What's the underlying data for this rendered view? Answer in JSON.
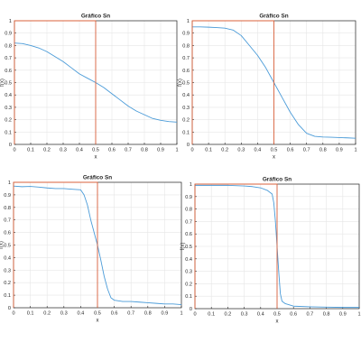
{
  "chart_data": [
    {
      "type": "line",
      "title": "Gráfico Sn",
      "xlabel": "x",
      "ylabel": "f(x)",
      "xlim": [
        0,
        1
      ],
      "ylim": [
        0,
        1
      ],
      "xticks": [
        "0",
        "0.1",
        "0.2",
        "0.3",
        "0.4",
        "0.5",
        "0.6",
        "0.7",
        "0.8",
        "0.9",
        "1"
      ],
      "yticks": [
        "0",
        "0.1",
        "0.2",
        "0.3",
        "0.4",
        "0.5",
        "0.6",
        "0.7",
        "0.8",
        "0.9",
        "1"
      ],
      "grid": true,
      "series": [
        {
          "color": "#4a9bd8",
          "x": [
            0,
            0.05,
            0.1,
            0.15,
            0.2,
            0.25,
            0.3,
            0.35,
            0.4,
            0.45,
            0.5,
            0.55,
            0.6,
            0.65,
            0.7,
            0.75,
            0.8,
            0.85,
            0.9,
            0.95,
            1
          ],
          "y": [
            0.82,
            0.815,
            0.8,
            0.78,
            0.75,
            0.71,
            0.67,
            0.62,
            0.57,
            0.535,
            0.5,
            0.46,
            0.41,
            0.36,
            0.31,
            0.27,
            0.24,
            0.21,
            0.195,
            0.185,
            0.18
          ]
        },
        {
          "color": "#d9603b",
          "x": [
            0,
            0,
            0.5,
            0.5
          ],
          "y": [
            0,
            1,
            1,
            0
          ]
        }
      ]
    },
    {
      "type": "line",
      "title": "Gráfico Sn",
      "xlabel": "x",
      "ylabel": "f(x)",
      "xlim": [
        0,
        1
      ],
      "ylim": [
        0,
        1
      ],
      "xticks": [
        "0",
        "0.1",
        "0.2",
        "0.3",
        "0.4",
        "0.5",
        "0.6",
        "0.7",
        "0.8",
        "0.9",
        "1"
      ],
      "yticks": [
        "0",
        "0.1",
        "0.2",
        "0.3",
        "0.4",
        "0.5",
        "0.6",
        "0.7",
        "0.8",
        "0.9",
        "1"
      ],
      "grid": true,
      "series": [
        {
          "color": "#4a9bd8",
          "x": [
            0,
            0.05,
            0.1,
            0.15,
            0.2,
            0.25,
            0.3,
            0.35,
            0.4,
            0.45,
            0.5,
            0.55,
            0.6,
            0.65,
            0.7,
            0.75,
            0.8,
            0.85,
            0.9,
            0.95,
            1
          ],
          "y": [
            0.95,
            0.95,
            0.948,
            0.945,
            0.94,
            0.925,
            0.88,
            0.8,
            0.72,
            0.62,
            0.5,
            0.38,
            0.26,
            0.16,
            0.09,
            0.065,
            0.06,
            0.058,
            0.055,
            0.053,
            0.05
          ]
        },
        {
          "color": "#d9603b",
          "x": [
            0,
            0,
            0.5,
            0.5
          ],
          "y": [
            0,
            1,
            1,
            0
          ]
        }
      ]
    },
    {
      "type": "line",
      "title": "Gráfico Sn",
      "xlabel": "x",
      "ylabel": "f(x)",
      "xlim": [
        0,
        1
      ],
      "ylim": [
        0,
        1
      ],
      "xticks": [
        "0",
        "0.1",
        "0.2",
        "0.3",
        "0.4",
        "0.5",
        "0.6",
        "0.7",
        "0.8",
        "0.9",
        "1"
      ],
      "yticks": [
        "0",
        "0.1",
        "0.2",
        "0.3",
        "0.4",
        "0.5",
        "0.6",
        "0.7",
        "0.8",
        "0.9",
        "1"
      ],
      "grid": true,
      "series": [
        {
          "color": "#4a9bd8",
          "x": [
            0,
            0.05,
            0.1,
            0.15,
            0.2,
            0.25,
            0.3,
            0.35,
            0.4,
            0.42,
            0.44,
            0.46,
            0.48,
            0.5,
            0.52,
            0.54,
            0.56,
            0.58,
            0.6,
            0.65,
            0.7,
            0.75,
            0.8,
            0.85,
            0.9,
            0.95,
            1
          ],
          "y": [
            0.97,
            0.965,
            0.967,
            0.962,
            0.955,
            0.95,
            0.95,
            0.945,
            0.94,
            0.9,
            0.82,
            0.7,
            0.6,
            0.5,
            0.38,
            0.25,
            0.15,
            0.08,
            0.06,
            0.05,
            0.05,
            0.045,
            0.04,
            0.035,
            0.03,
            0.03,
            0.025
          ]
        },
        {
          "color": "#d9603b",
          "x": [
            0,
            0,
            0.5,
            0.5
          ],
          "y": [
            0,
            1,
            1,
            0
          ]
        }
      ]
    },
    {
      "type": "line",
      "title": "Gráfico Sn",
      "xlabel": "x",
      "ylabel": "f(x)",
      "xlim": [
        0,
        1
      ],
      "ylim": [
        0,
        1
      ],
      "xticks": [
        "0",
        "0.1",
        "0.2",
        "0.3",
        "0.4",
        "0.5",
        "0.6",
        "0.7",
        "0.8",
        "0.9",
        "1"
      ],
      "yticks": [
        "0",
        "0.1",
        "0.2",
        "0.3",
        "0.4",
        "0.5",
        "0.6",
        "0.7",
        "0.8",
        "0.9",
        "1"
      ],
      "grid": true,
      "series": [
        {
          "color": "#4a9bd8",
          "x": [
            0,
            0.1,
            0.2,
            0.3,
            0.35,
            0.4,
            0.44,
            0.47,
            0.48,
            0.49,
            0.5,
            0.51,
            0.52,
            0.53,
            0.55,
            0.6,
            0.7,
            0.8,
            0.9,
            1
          ],
          "y": [
            0.99,
            0.99,
            0.99,
            0.985,
            0.98,
            0.97,
            0.95,
            0.92,
            0.85,
            0.7,
            0.5,
            0.3,
            0.12,
            0.06,
            0.04,
            0.02,
            0.015,
            0.012,
            0.01,
            0.01
          ]
        },
        {
          "color": "#d9603b",
          "x": [
            0,
            0,
            0.5,
            0.5
          ],
          "y": [
            0,
            1,
            1,
            0
          ]
        }
      ]
    }
  ]
}
